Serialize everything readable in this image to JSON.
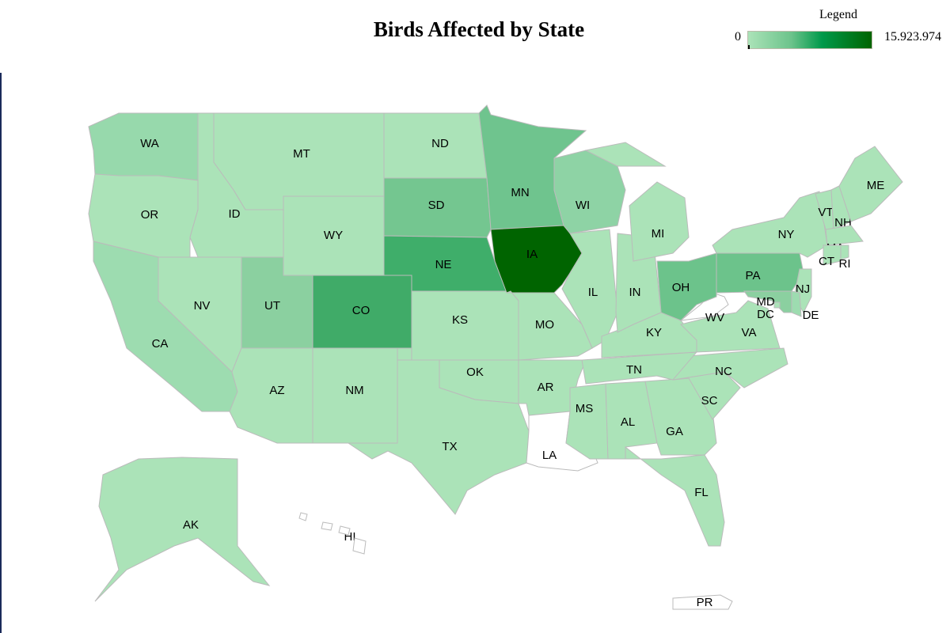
{
  "title": "Birds Affected by State",
  "legend": {
    "title": "Legend",
    "min_label": "0",
    "max_label": "15.923.974",
    "color_low": "#abe3b8",
    "color_high": "#006400"
  },
  "chart_data": {
    "type": "choropleth",
    "title": "Birds Affected by State",
    "scale": {
      "min": 0,
      "max": 15923974,
      "colors": [
        "#abe3b8",
        "#006400"
      ]
    },
    "no_data_color": "#ffffff",
    "states": [
      {
        "id": "WA",
        "fill": "#97d9ac"
      },
      {
        "id": "OR",
        "fill": "#abe3b8"
      },
      {
        "id": "CA",
        "fill": "#9ddcb0"
      },
      {
        "id": "ID",
        "fill": "#abe3b8"
      },
      {
        "id": "MT",
        "fill": "#abe3b8"
      },
      {
        "id": "WY",
        "fill": "#abe3b8"
      },
      {
        "id": "NV",
        "fill": "#abe3b8"
      },
      {
        "id": "UT",
        "fill": "#8bd0a0"
      },
      {
        "id": "AZ",
        "fill": "#abe3b8"
      },
      {
        "id": "CO",
        "fill": "#40ab68"
      },
      {
        "id": "NM",
        "fill": "#abe3b8"
      },
      {
        "id": "ND",
        "fill": "#abe3b8"
      },
      {
        "id": "SD",
        "fill": "#74c690"
      },
      {
        "id": "NE",
        "fill": "#3fae6a"
      },
      {
        "id": "KS",
        "fill": "#abe3b8"
      },
      {
        "id": "OK",
        "fill": "#abe3b8"
      },
      {
        "id": "TX",
        "fill": "#abe3b8"
      },
      {
        "id": "MN",
        "fill": "#6fc48e"
      },
      {
        "id": "IA",
        "fill": "#006400"
      },
      {
        "id": "WI",
        "fill": "#8ed3a5"
      },
      {
        "id": "IL",
        "fill": "#abe3b8"
      },
      {
        "id": "MO",
        "fill": "#abe3b8"
      },
      {
        "id": "AR",
        "fill": "#abe3b8"
      },
      {
        "id": "LA",
        "fill": "#ffffff"
      },
      {
        "id": "MS",
        "fill": "#abe3b8"
      },
      {
        "id": "AL",
        "fill": "#abe3b8"
      },
      {
        "id": "GA",
        "fill": "#abe3b8"
      },
      {
        "id": "FL",
        "fill": "#abe3b8"
      },
      {
        "id": "SC",
        "fill": "#abe3b8"
      },
      {
        "id": "NC",
        "fill": "#abe3b8"
      },
      {
        "id": "TN",
        "fill": "#abe3b8"
      },
      {
        "id": "KY",
        "fill": "#abe3b8"
      },
      {
        "id": "VA",
        "fill": "#abe3b8"
      },
      {
        "id": "WV",
        "fill": "#ffffff"
      },
      {
        "id": "OH",
        "fill": "#6cc38b"
      },
      {
        "id": "IN",
        "fill": "#abe3b8"
      },
      {
        "id": "MI",
        "fill": "#abe3b8"
      },
      {
        "id": "PA",
        "fill": "#6cc38b"
      },
      {
        "id": "NY",
        "fill": "#abe3b8"
      },
      {
        "id": "VT",
        "fill": "#abe3b8"
      },
      {
        "id": "NH",
        "fill": "#abe3b8"
      },
      {
        "id": "ME",
        "fill": "#abe3b8"
      },
      {
        "id": "MA",
        "fill": "#abe3b8"
      },
      {
        "id": "CT",
        "fill": "#abe3b8"
      },
      {
        "id": "RI",
        "fill": "#abe3b8"
      },
      {
        "id": "NJ",
        "fill": "#abe3b8"
      },
      {
        "id": "DE",
        "fill": "#9ddcb0"
      },
      {
        "id": "MD",
        "fill": "#8bd0a0"
      },
      {
        "id": "DC",
        "fill": "#abe3b8"
      },
      {
        "id": "AK",
        "fill": "#abe3b8"
      },
      {
        "id": "HI",
        "fill": "#ffffff"
      },
      {
        "id": "PR",
        "fill": "#ffffff"
      }
    ]
  }
}
